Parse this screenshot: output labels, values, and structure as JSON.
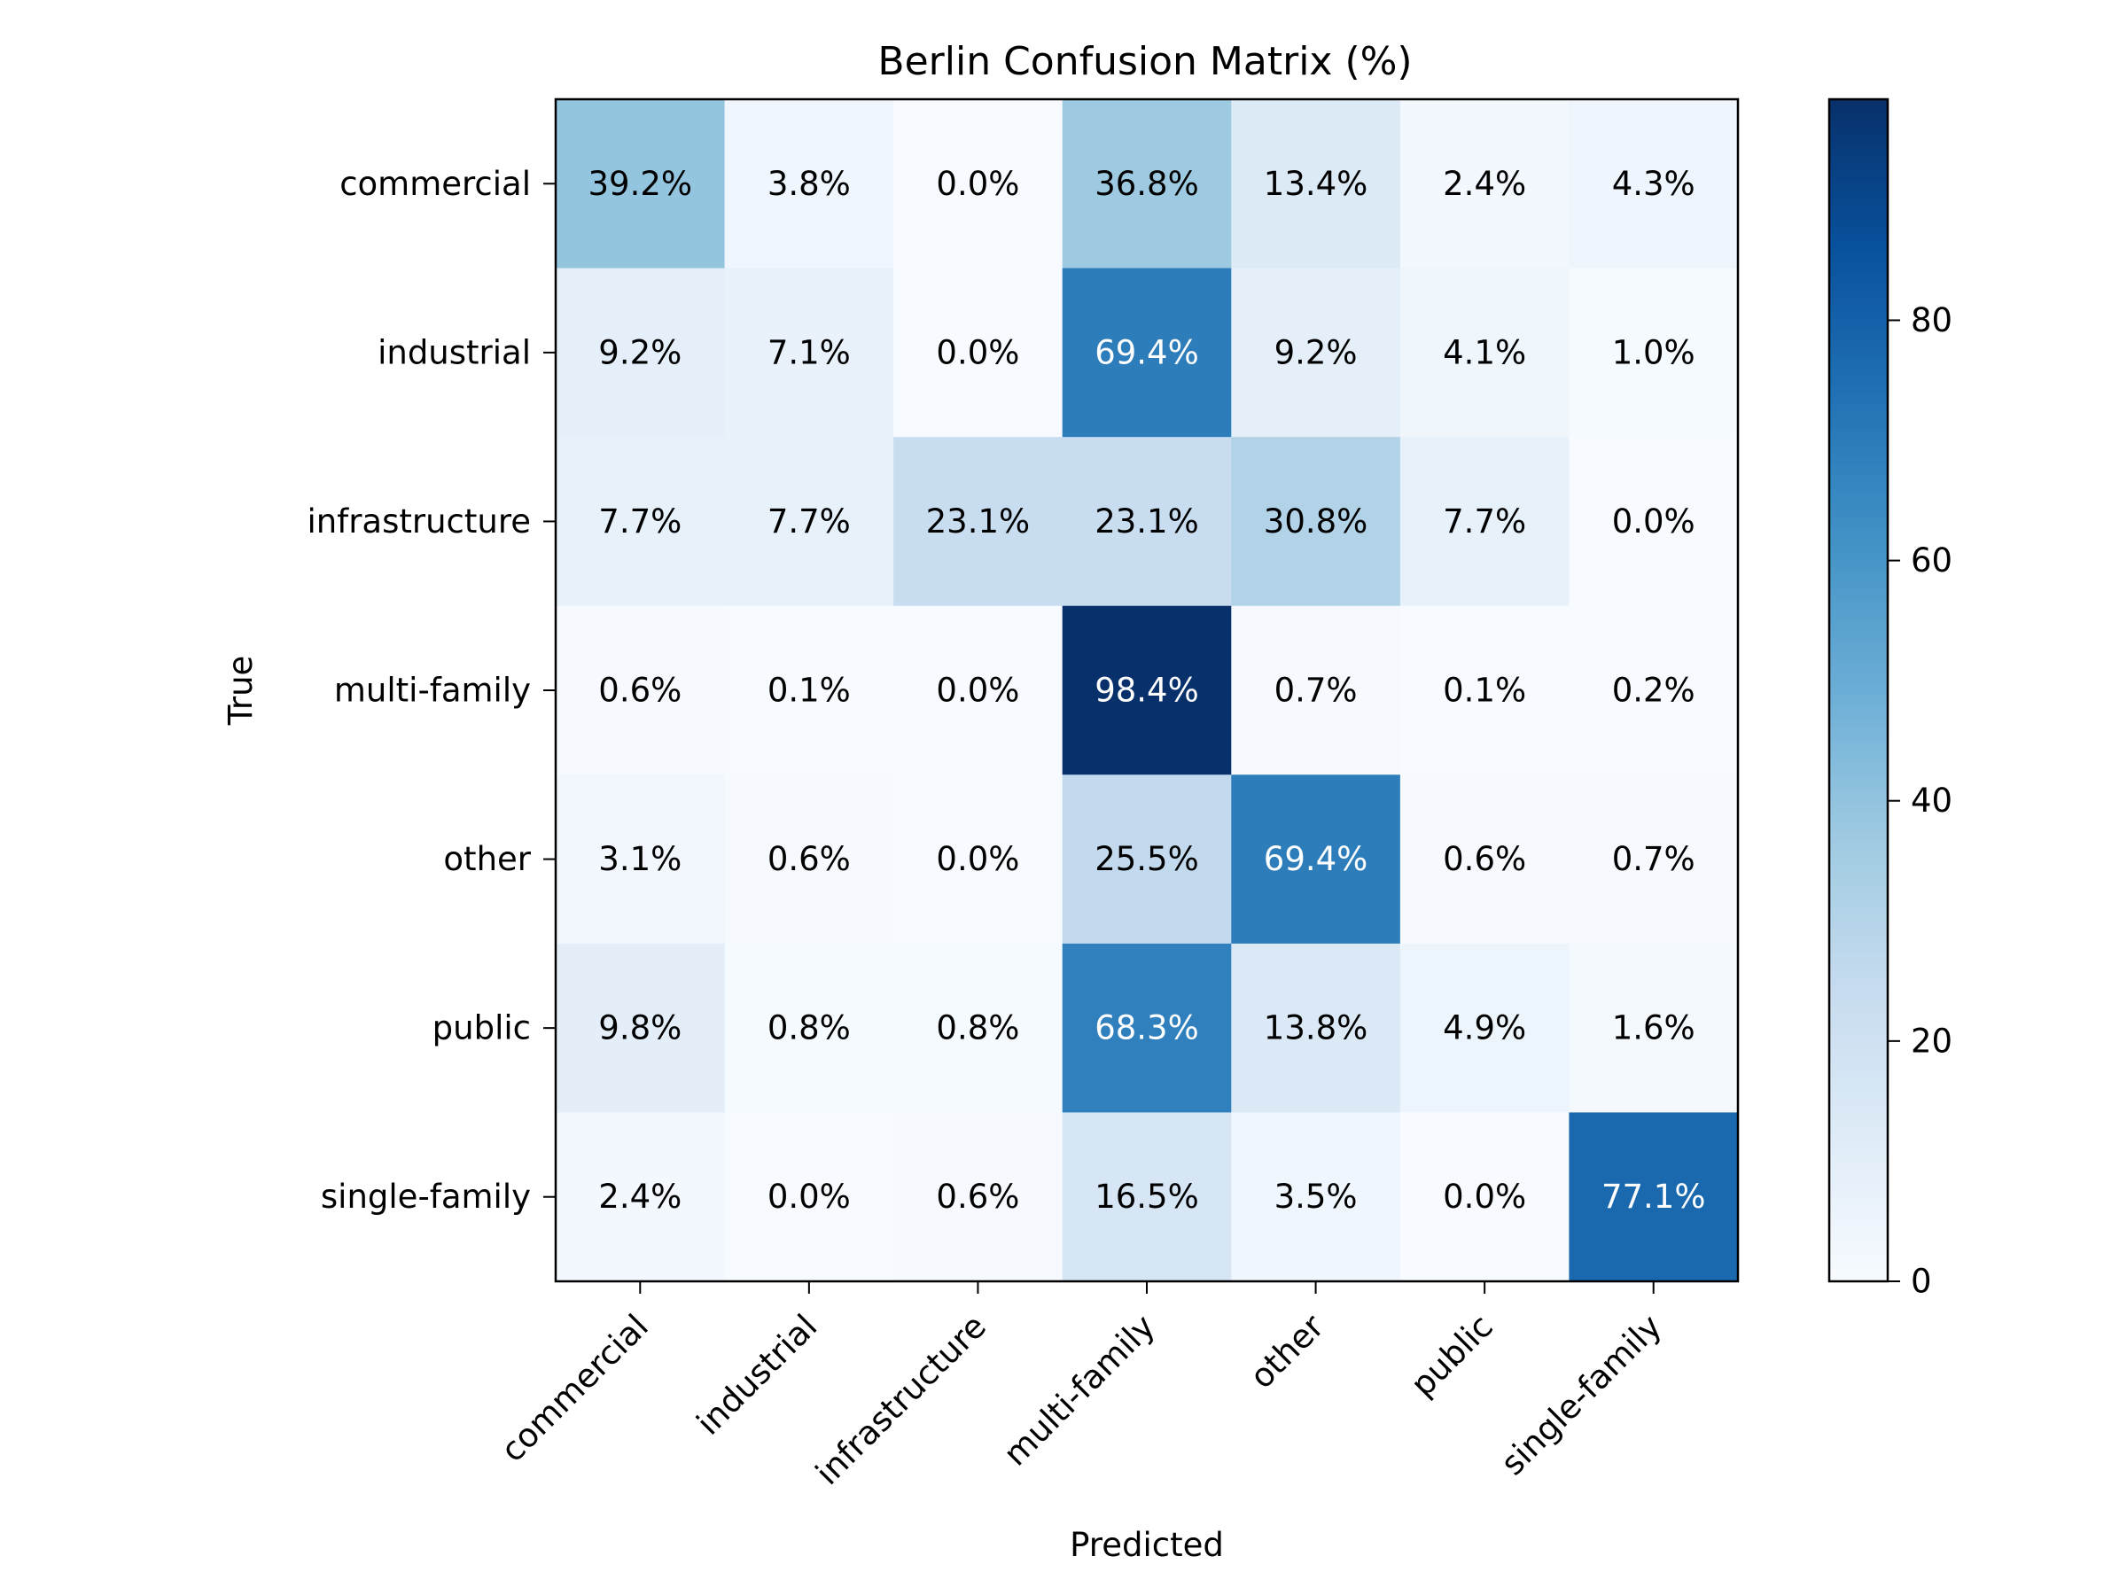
{
  "chart_data": {
    "type": "heatmap",
    "title": "Berlin Confusion Matrix (%)",
    "xlabel": "Predicted",
    "ylabel": "True",
    "x_categories": [
      "commercial",
      "industrial",
      "infrastructure",
      "multi-family",
      "other",
      "public",
      "single-family"
    ],
    "y_categories": [
      "commercial",
      "industrial",
      "infrastructure",
      "multi-family",
      "other",
      "public",
      "single-family"
    ],
    "values": [
      [
        39.2,
        3.8,
        0.0,
        36.8,
        13.4,
        2.4,
        4.3
      ],
      [
        9.2,
        7.1,
        0.0,
        69.4,
        9.2,
        4.1,
        1.0
      ],
      [
        7.7,
        7.7,
        23.1,
        23.1,
        30.8,
        7.7,
        0.0
      ],
      [
        0.6,
        0.1,
        0.0,
        98.4,
        0.7,
        0.1,
        0.2
      ],
      [
        3.1,
        0.6,
        0.0,
        25.5,
        69.4,
        0.6,
        0.7
      ],
      [
        9.8,
        0.8,
        0.8,
        68.3,
        13.8,
        4.9,
        1.6
      ],
      [
        2.4,
        0.0,
        0.6,
        16.5,
        3.5,
        0.0,
        77.1
      ]
    ],
    "value_suffix": "%",
    "colormap": "Blues",
    "colorbar": {
      "range": [
        0,
        98.4
      ],
      "ticks": [
        0,
        20,
        40,
        60,
        80
      ]
    }
  }
}
